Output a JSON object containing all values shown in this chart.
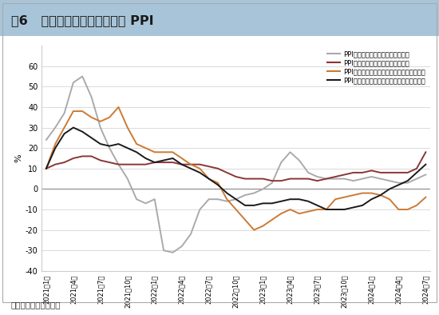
{
  "title": "图6   有色金属与黑色金属行业 PPI",
  "source": "资料来源：国家统计局",
  "ylabel": "%",
  "ylim": [
    -40,
    70
  ],
  "yticks": [
    -40,
    -30,
    -20,
    -10,
    0,
    10,
    20,
    30,
    40,
    50,
    60
  ],
  "header_bg": "#a8c4d8",
  "legend": [
    "PPI：黑色金属矿采选业：当月同比",
    "PPI：有色金属矿采选业：当月同比",
    "PPI：黑色金属冶炼及压延加工业：当月同比",
    "PPI：有色金属冶炼及压延加工业：当月同比"
  ],
  "colors": [
    "#aaaaaa",
    "#8b3535",
    "#cc7a35",
    "#1a1a1a"
  ],
  "x_labels": [
    "2021年1月",
    "2021年4月",
    "2021年7月",
    "2021年10月",
    "2022年1月",
    "2022年4月",
    "2022年7月",
    "2022年10月",
    "2023年1月",
    "2023年4月",
    "2023年7月",
    "2023年10月",
    "2024年1月",
    "2024年4月",
    "2024年7月"
  ],
  "black_mining": [
    24,
    30,
    37,
    52,
    55,
    45,
    30,
    20,
    12,
    5,
    -5,
    -7,
    -5,
    -30,
    -31,
    -28,
    -22,
    -10,
    -5,
    -5,
    -6,
    -5,
    -3,
    -2,
    0,
    3,
    13,
    18,
    14,
    8,
    6,
    5,
    5,
    5,
    4,
    5,
    6,
    5,
    4,
    3,
    3,
    5,
    7
  ],
  "nonferrous_mining": [
    10,
    12,
    13,
    15,
    16,
    16,
    14,
    13,
    12,
    12,
    12,
    12,
    13,
    13,
    13,
    12,
    12,
    12,
    11,
    10,
    8,
    6,
    5,
    5,
    5,
    4,
    4,
    5,
    5,
    5,
    4,
    5,
    6,
    7,
    8,
    8,
    9,
    8,
    8,
    8,
    8,
    10,
    18
  ],
  "black_smelting": [
    10,
    22,
    30,
    38,
    38,
    35,
    33,
    35,
    40,
    30,
    22,
    20,
    18,
    18,
    18,
    15,
    12,
    10,
    5,
    3,
    -5,
    -10,
    -15,
    -20,
    -18,
    -15,
    -12,
    -10,
    -12,
    -11,
    -10,
    -10,
    -5,
    -4,
    -3,
    -2,
    -2,
    -3,
    -5,
    -10,
    -10,
    -8,
    -4
  ],
  "nonferrous_smelting": [
    10,
    20,
    27,
    30,
    28,
    25,
    22,
    21,
    22,
    20,
    18,
    15,
    13,
    14,
    15,
    12,
    10,
    8,
    5,
    2,
    -2,
    -5,
    -8,
    -8,
    -7,
    -7,
    -6,
    -5,
    -5,
    -6,
    -8,
    -10,
    -10,
    -10,
    -9,
    -8,
    -5,
    -3,
    0,
    2,
    4,
    8,
    12
  ]
}
